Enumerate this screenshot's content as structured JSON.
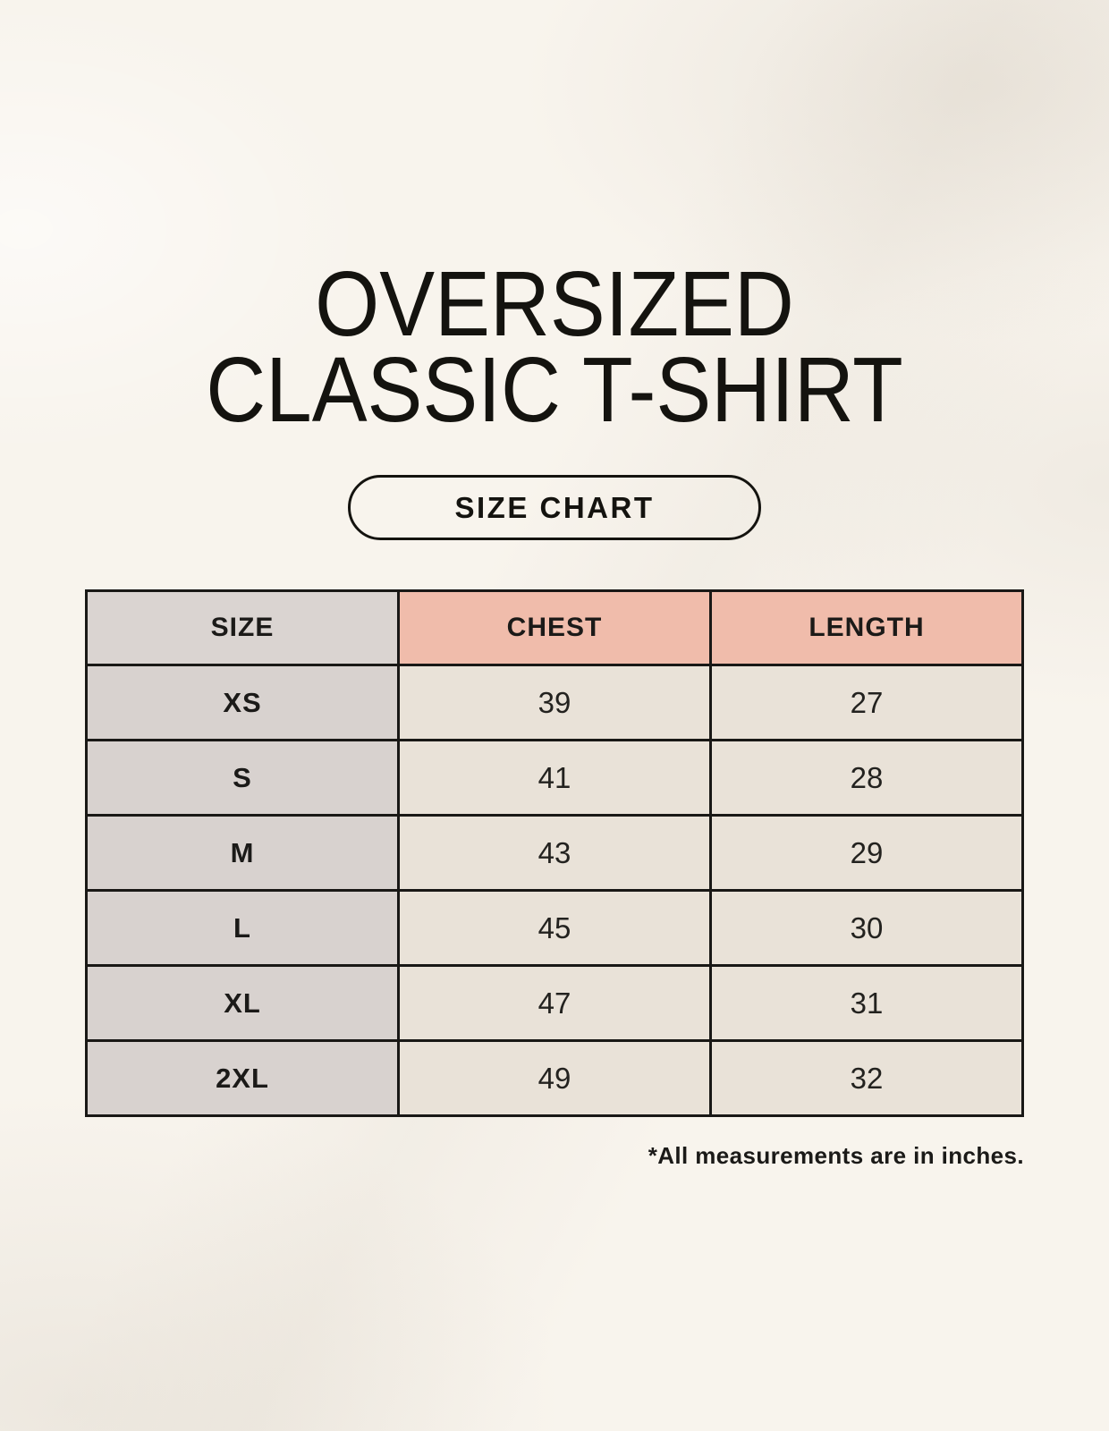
{
  "title": {
    "line1": "OVERSIZED",
    "line2": "CLASSIC T-SHIRT"
  },
  "badge": {
    "label": "SIZE CHART"
  },
  "footnote": "*All measurements are in inches.",
  "colors": {
    "background": "#f8f4ed",
    "header_size_bg": "#dad4d1",
    "header_measure_bg": "#f0bcab",
    "row_label_bg": "#d8d2cf",
    "value_cell_bg": "#e9e2d8",
    "border": "#191816",
    "text": "#14130f"
  },
  "chart_data": {
    "type": "table",
    "title": "OVERSIZED CLASSIC T-SHIRT",
    "subtitle": "SIZE CHART",
    "columns": [
      "SIZE",
      "CHEST",
      "LENGTH"
    ],
    "rows": [
      [
        "XS",
        "39",
        "27"
      ],
      [
        "S",
        "41",
        "28"
      ],
      [
        "M",
        "43",
        "29"
      ],
      [
        "L",
        "45",
        "30"
      ],
      [
        "XL",
        "47",
        "31"
      ],
      [
        "2XL",
        "49",
        "32"
      ]
    ],
    "units": "inches",
    "note": "*All measurements are in inches."
  }
}
